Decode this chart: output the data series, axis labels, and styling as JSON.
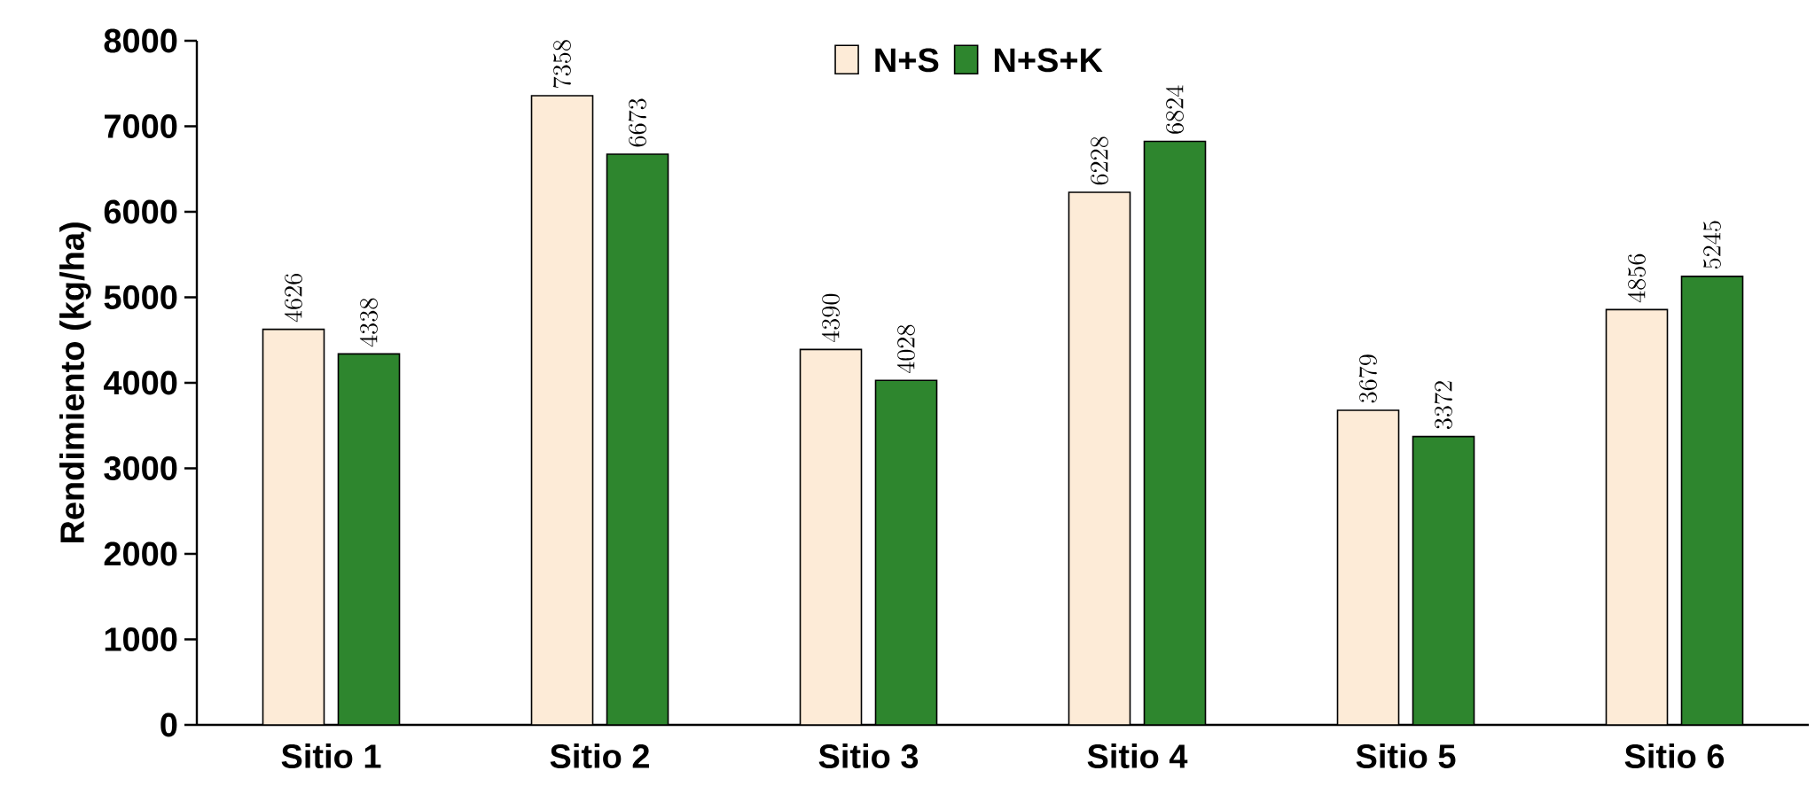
{
  "chart_data": {
    "type": "bar",
    "ylabel": "Rendimiento (kg/ha)",
    "categories": [
      "Sitio 1",
      "Sitio 2",
      "Sitio 3",
      "Sitio 4",
      "Sitio 5",
      "Sitio 6"
    ],
    "series": [
      {
        "name": "N+S",
        "color": "#fdebd7",
        "values": [
          4626,
          7358,
          4390,
          6228,
          3679,
          4856
        ]
      },
      {
        "name": "N+S+K",
        "color": "#2e862e",
        "values": [
          4338,
          6673,
          4028,
          6824,
          3372,
          5245
        ]
      }
    ],
    "ylim": [
      0,
      8000
    ],
    "yticks": [
      0,
      1000,
      2000,
      3000,
      4000,
      5000,
      6000,
      7000,
      8000
    ],
    "data_labels": true,
    "legend": "top",
    "grid": false
  }
}
